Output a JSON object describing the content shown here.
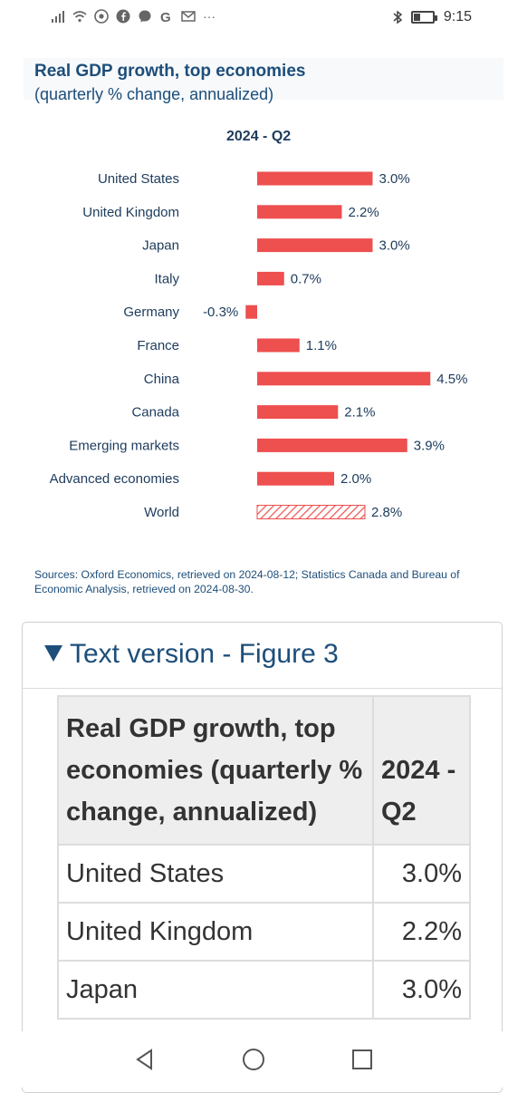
{
  "status_bar": {
    "time": "9:15",
    "battery_level": 0.35,
    "left_icons": [
      "signal-icon",
      "wifi-icon",
      "chrome-icon",
      "facebook-icon",
      "messenger-icon",
      "google-icon",
      "mail-icon",
      "more-icon"
    ],
    "more_text": "···"
  },
  "figure": {
    "title": "Real GDP growth, top economies",
    "subtitle": "(quarterly % change, annualized)",
    "period": "2024 - Q2",
    "sources": "Sources: Oxford Economics, retrieved on 2024-08-12;  Statistics Canada and Bureau of Economic Analysis, retrieved on 2024-08-30."
  },
  "chart_data": {
    "type": "bar",
    "orientation": "horizontal",
    "title": "Real GDP growth, top economies",
    "subtitle": "(quarterly % change, annualized)",
    "series": [
      {
        "name": "2024 - Q2"
      }
    ],
    "categories": [
      "United States",
      "United Kingdom",
      "Japan",
      "Italy",
      "Germany",
      "France",
      "China",
      "Canada",
      "Emerging markets",
      "Advanced economies",
      "World"
    ],
    "values": [
      3.0,
      2.2,
      3.0,
      0.7,
      -0.3,
      1.1,
      4.5,
      2.1,
      3.9,
      2.0,
      2.8
    ],
    "labels": [
      "3.0%",
      "2.2%",
      "3.0%",
      "0.7%",
      "-0.3%",
      "1.1%",
      "4.5%",
      "2.1%",
      "3.9%",
      "2.0%",
      "2.8%"
    ],
    "hatched": [
      false,
      false,
      false,
      false,
      false,
      false,
      false,
      false,
      false,
      false,
      true
    ],
    "bar_color": "#ee4f4f",
    "xlim": [
      -0.3,
      4.5
    ],
    "grid": false
  },
  "text_version": {
    "heading": "Text version - Figure 3",
    "header_col1": "Real GDP growth, top economies (quarterly % change, annualized)",
    "header_col2": "2024 - Q2",
    "rows": [
      {
        "name": "United States",
        "value": "3.0%"
      },
      {
        "name": "United Kingdom",
        "value": "2.2%"
      },
      {
        "name": "Japan",
        "value": "3.0%"
      }
    ]
  },
  "nav": {
    "icons": [
      "back-triangle-icon",
      "home-circle-icon",
      "recents-square-icon"
    ]
  }
}
